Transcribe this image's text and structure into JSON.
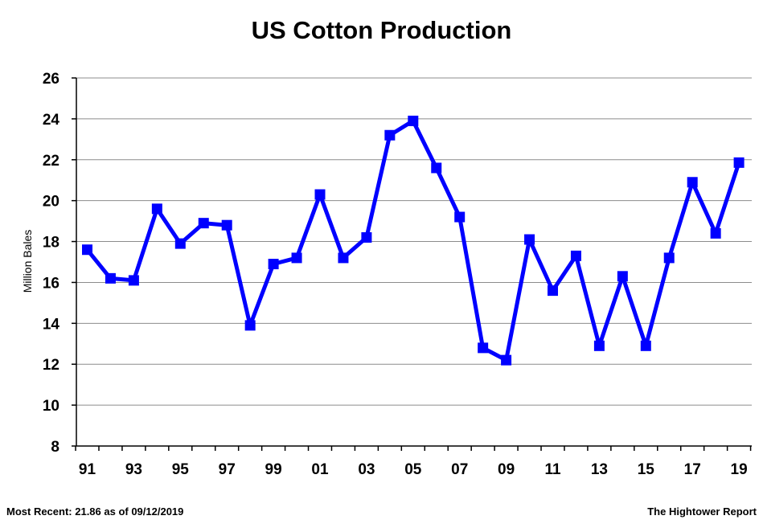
{
  "chart_data": {
    "type": "line",
    "title": "US Cotton Production",
    "ylabel": "Million Bales",
    "xlabel": "",
    "ylim": [
      8,
      26
    ],
    "yticks": [
      8,
      10,
      12,
      14,
      16,
      18,
      20,
      22,
      24,
      26
    ],
    "x": [
      1991,
      1992,
      1993,
      1994,
      1995,
      1996,
      1997,
      1998,
      1999,
      2000,
      2001,
      2002,
      2003,
      2004,
      2005,
      2006,
      2007,
      2008,
      2009,
      2010,
      2011,
      2012,
      2013,
      2014,
      2015,
      2016,
      2017,
      2018,
      2019
    ],
    "xtick_labels": [
      "91",
      "93",
      "95",
      "97",
      "99",
      "01",
      "03",
      "05",
      "07",
      "09",
      "11",
      "13",
      "15",
      "17",
      "19"
    ],
    "series": [
      {
        "values": [
          17.6,
          16.2,
          16.1,
          19.6,
          17.9,
          18.9,
          18.8,
          13.9,
          16.9,
          17.2,
          20.3,
          17.2,
          18.2,
          23.2,
          23.9,
          21.6,
          19.2,
          12.8,
          12.2,
          18.1,
          15.6,
          17.3,
          12.9,
          16.3,
          12.9,
          17.2,
          20.9,
          18.4,
          21.86
        ],
        "color": "#0000ff"
      }
    ],
    "grid": true,
    "legend": "none"
  },
  "footer": {
    "left": "Most Recent: 21.86 as of 09/12/2019",
    "right": "The Hightower Report"
  }
}
